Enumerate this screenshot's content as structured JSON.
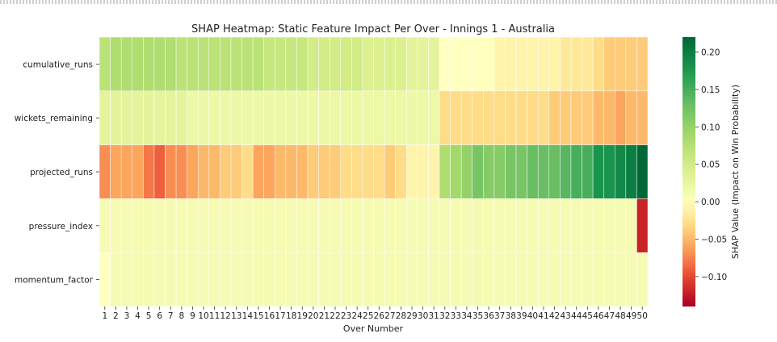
{
  "chart_data": {
    "type": "heatmap",
    "title": "SHAP Heatmap: Static Feature Impact Per Over - Innings 1 - Australia",
    "xlabel": "Over Number",
    "ylabel": "",
    "rows": [
      "cumulative_runs",
      "wickets_remaining",
      "projected_runs",
      "pressure_index",
      "momentum_factor"
    ],
    "columns": [
      "1",
      "2",
      "3",
      "4",
      "5",
      "6",
      "7",
      "8",
      "9",
      "10",
      "11",
      "12",
      "13",
      "14",
      "15",
      "16",
      "17",
      "18",
      "19",
      "20",
      "21",
      "22",
      "23",
      "24",
      "25",
      "26",
      "27",
      "28",
      "29",
      "30",
      "31",
      "32",
      "33",
      "34",
      "35",
      "36",
      "37",
      "38",
      "39",
      "40",
      "41",
      "42",
      "43",
      "44",
      "45",
      "46",
      "47",
      "48",
      "49",
      "50"
    ],
    "values": [
      [
        0.07,
        0.08,
        0.08,
        0.08,
        0.08,
        0.08,
        0.08,
        0.07,
        0.07,
        0.07,
        0.07,
        0.07,
        0.07,
        0.07,
        0.07,
        0.06,
        0.06,
        0.06,
        0.06,
        0.05,
        0.05,
        0.05,
        0.05,
        0.05,
        0.04,
        0.04,
        0.04,
        0.04,
        0.03,
        0.03,
        0.03,
        0.0,
        0.0,
        0.0,
        0.0,
        0.0,
        -0.01,
        -0.01,
        -0.01,
        -0.01,
        -0.01,
        -0.01,
        -0.02,
        -0.02,
        -0.02,
        -0.03,
        -0.04,
        -0.04,
        -0.04,
        -0.04
      ],
      [
        0.03,
        0.03,
        0.03,
        0.03,
        0.03,
        0.03,
        0.03,
        0.03,
        0.02,
        0.02,
        0.02,
        0.02,
        0.02,
        0.02,
        0.02,
        0.02,
        0.02,
        0.02,
        0.02,
        0.02,
        0.02,
        0.02,
        0.02,
        0.02,
        0.02,
        0.02,
        0.02,
        0.02,
        0.02,
        0.02,
        0.02,
        -0.03,
        -0.03,
        -0.03,
        -0.03,
        -0.03,
        -0.03,
        -0.03,
        -0.03,
        -0.03,
        -0.03,
        -0.04,
        -0.04,
        -0.04,
        -0.04,
        -0.05,
        -0.05,
        -0.06,
        -0.05,
        -0.05
      ],
      [
        -0.07,
        -0.06,
        -0.06,
        -0.06,
        -0.08,
        -0.09,
        -0.07,
        -0.07,
        -0.06,
        -0.05,
        -0.05,
        -0.04,
        -0.04,
        -0.03,
        -0.06,
        -0.06,
        -0.05,
        -0.05,
        -0.05,
        -0.04,
        -0.04,
        -0.04,
        -0.03,
        -0.03,
        -0.03,
        -0.03,
        -0.04,
        -0.03,
        -0.01,
        -0.01,
        -0.01,
        0.08,
        0.09,
        0.1,
        0.12,
        0.11,
        0.11,
        0.12,
        0.12,
        0.13,
        0.13,
        0.13,
        0.14,
        0.15,
        0.15,
        0.18,
        0.18,
        0.19,
        0.2,
        0.22
      ],
      [
        0.01,
        0.01,
        0.01,
        0.01,
        0.01,
        0.01,
        0.01,
        0.01,
        0.01,
        0.01,
        0.01,
        0.01,
        0.01,
        0.01,
        0.01,
        0.01,
        0.01,
        0.01,
        0.01,
        0.01,
        0.01,
        0.01,
        0.01,
        0.01,
        0.01,
        0.01,
        0.01,
        0.01,
        0.01,
        0.01,
        0.01,
        0.01,
        0.01,
        0.01,
        0.01,
        0.01,
        0.01,
        0.01,
        0.01,
        0.01,
        0.01,
        0.01,
        0.01,
        0.01,
        0.01,
        0.01,
        0.01,
        0.01,
        0.01,
        -0.12
      ],
      [
        0.0,
        0.01,
        0.01,
        0.01,
        0.01,
        0.01,
        0.01,
        0.01,
        0.01,
        0.01,
        0.01,
        0.01,
        0.01,
        0.01,
        0.01,
        0.01,
        0.01,
        0.01,
        0.01,
        0.01,
        0.01,
        0.01,
        0.01,
        0.01,
        0.01,
        0.01,
        0.01,
        0.01,
        0.01,
        0.01,
        0.01,
        0.01,
        0.01,
        0.01,
        0.01,
        0.01,
        0.01,
        0.01,
        0.01,
        0.01,
        0.01,
        0.01,
        0.01,
        0.01,
        0.01,
        0.01,
        0.01,
        0.01,
        0.01,
        0.01
      ]
    ],
    "colormap": "RdYlGn",
    "vmin": -0.14,
    "vmax": 0.22,
    "colorbar": {
      "label": "SHAP Value (Impact on Win Probability)",
      "ticks": [
        "0.20",
        "0.15",
        "0.10",
        "0.05",
        "0.00",
        "−0.05",
        "−0.10"
      ],
      "tick_values": [
        0.2,
        0.15,
        0.1,
        0.05,
        0.0,
        -0.05,
        -0.1
      ]
    },
    "grid": false,
    "legend": "colorbar-right"
  }
}
